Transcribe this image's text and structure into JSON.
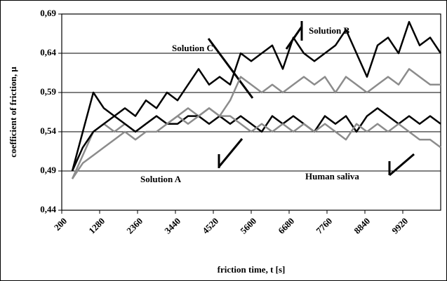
{
  "chart_data": {
    "type": "line",
    "xlabel": "friction time, t [s]",
    "ylabel": "coefficient of friction, μ",
    "x": [
      500,
      800,
      1100,
      1400,
      1700,
      2000,
      2300,
      2600,
      2900,
      3200,
      3500,
      3800,
      4100,
      4400,
      4700,
      5000,
      5300,
      5600,
      5900,
      6200,
      6500,
      6800,
      7100,
      7400,
      7700,
      8000,
      8300,
      8600,
      8900,
      9200,
      9500,
      9800,
      10100,
      10400,
      10700,
      11000
    ],
    "series": [
      {
        "name": "Solution B",
        "color": "#000000",
        "values": [
          0.49,
          0.54,
          0.59,
          0.57,
          0.56,
          0.57,
          0.56,
          0.58,
          0.57,
          0.59,
          0.58,
          0.6,
          0.62,
          0.6,
          0.61,
          0.6,
          0.64,
          0.63,
          0.64,
          0.65,
          0.62,
          0.66,
          0.64,
          0.63,
          0.64,
          0.65,
          0.67,
          0.64,
          0.61,
          0.65,
          0.66,
          0.64,
          0.68,
          0.65,
          0.66,
          0.64
        ]
      },
      {
        "name": "Solution C",
        "color": "#8c8c8c",
        "values": [
          0.48,
          0.51,
          0.54,
          0.55,
          0.54,
          0.55,
          0.54,
          0.55,
          0.56,
          0.55,
          0.56,
          0.57,
          0.56,
          0.57,
          0.56,
          0.58,
          0.61,
          0.6,
          0.59,
          0.6,
          0.59,
          0.6,
          0.61,
          0.6,
          0.61,
          0.59,
          0.61,
          0.6,
          0.59,
          0.6,
          0.61,
          0.6,
          0.62,
          0.61,
          0.6,
          0.6
        ]
      },
      {
        "name": "Solution A",
        "color": "#000000",
        "values": [
          0.49,
          0.52,
          0.54,
          0.55,
          0.56,
          0.55,
          0.54,
          0.55,
          0.56,
          0.55,
          0.55,
          0.56,
          0.56,
          0.55,
          0.56,
          0.55,
          0.56,
          0.55,
          0.54,
          0.56,
          0.55,
          0.56,
          0.55,
          0.54,
          0.56,
          0.55,
          0.56,
          0.54,
          0.56,
          0.57,
          0.56,
          0.55,
          0.56,
          0.55,
          0.56,
          0.55
        ]
      },
      {
        "name": "Human saliva",
        "color": "#8c8c8c",
        "values": [
          0.48,
          0.5,
          0.51,
          0.52,
          0.53,
          0.54,
          0.53,
          0.54,
          0.54,
          0.55,
          0.56,
          0.55,
          0.56,
          0.57,
          0.56,
          0.56,
          0.55,
          0.54,
          0.55,
          0.54,
          0.55,
          0.54,
          0.55,
          0.54,
          0.55,
          0.54,
          0.53,
          0.55,
          0.54,
          0.55,
          0.54,
          0.55,
          0.54,
          0.53,
          0.53,
          0.52
        ]
      }
    ],
    "xlim": [
      200,
      11000
    ],
    "xticks": [
      200,
      1280,
      2360,
      3440,
      4520,
      5600,
      6680,
      7760,
      8840,
      9920
    ],
    "ylim": [
      0.44,
      0.69
    ],
    "yticks": [
      {
        "value": 0.44,
        "label": "0,44"
      },
      {
        "value": 0.49,
        "label": "0,49"
      },
      {
        "value": 0.54,
        "label": "0,54"
      },
      {
        "value": 0.59,
        "label": "0,59"
      },
      {
        "value": 0.64,
        "label": "0,64"
      },
      {
        "value": 0.69,
        "label": "0,69"
      }
    ],
    "grid": true
  }
}
